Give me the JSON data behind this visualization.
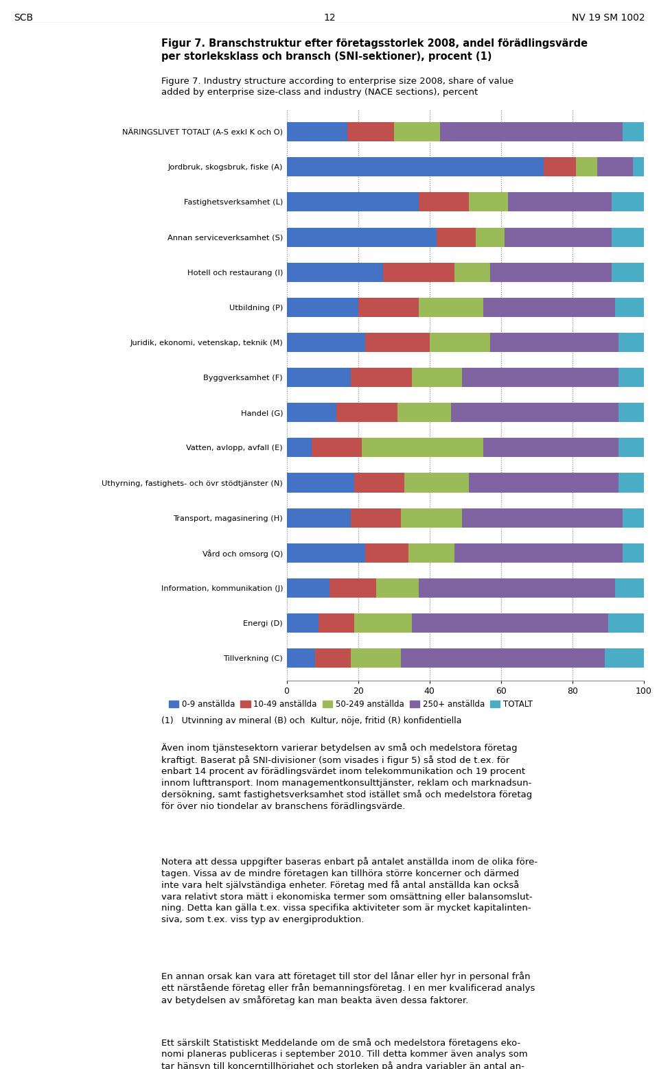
{
  "title_bold": "Figur 7. Branschstruktur efter företagsstorlek 2008, andel förädlingsvärde\nper storleksklass och bransch (SNI-sektioner), procent (1)",
  "title_normal": "Figure 7. Industry structure according to enterprise size 2008, share of value\nadded by enterprise size-class and industry (NACE sections), percent",
  "categories": [
    "NÄRINGSLIVET TOTALT (A-S exkl K och O)",
    "Jordbruk, skogsbruk, fiske (A)",
    "Fastighetsverksamhet (L)",
    "Annan serviceverksamhet (S)",
    "Hotell och restaurang (I)",
    "Utbildning (P)",
    "Juridik, ekonomi, vetenskap, teknik (M)",
    "Byggverksamhet (F)",
    "Handel (G)",
    "Vatten, avlopp, avfall (E)",
    "Uthyrning, fastighets- och övr stödtjänster (N)",
    "Transport, magasinering (H)",
    "Vård och omsorg (Q)",
    "Information, kommunikation (J)",
    "Energi (D)",
    "Tillverkning (C)"
  ],
  "data": {
    "0-9 anställda": [
      17,
      72,
      37,
      42,
      27,
      20,
      22,
      18,
      14,
      7,
      19,
      18,
      22,
      12,
      9,
      8
    ],
    "10-49 anställda": [
      13,
      9,
      14,
      11,
      20,
      17,
      18,
      17,
      17,
      14,
      14,
      14,
      12,
      13,
      10,
      10
    ],
    "50-249 anställda": [
      13,
      6,
      11,
      8,
      10,
      18,
      17,
      14,
      15,
      34,
      18,
      17,
      13,
      12,
      16,
      14
    ],
    "250+ anställda": [
      51,
      10,
      29,
      30,
      34,
      37,
      36,
      44,
      47,
      38,
      42,
      45,
      47,
      55,
      55,
      57
    ],
    "TOTALT": [
      6,
      3,
      9,
      9,
      9,
      8,
      7,
      7,
      7,
      7,
      7,
      6,
      6,
      8,
      10,
      11
    ]
  },
  "colors": {
    "0-9 anställda": "#4472c4",
    "10-49 anställda": "#c0504d",
    "50-249 anställda": "#9bbb59",
    "250+ anställda": "#8064a2",
    "TOTALT": "#4bacc6"
  },
  "legend_labels": [
    "0-9 anställda",
    "10-49 anställda",
    "50-249 anställda",
    "250+ anställda",
    "TOTALT"
  ],
  "footnote": "(1)   Utvinning av mineral (B) och  Kultur, nöje, fritid (R) konfidentiella",
  "header_left": "SCB",
  "header_center": "12",
  "header_right": "NV 19 SM 1002",
  "body_paragraphs": [
    "Även inom tjänstesektorn varierar betydelsen av små och medelstora företag\nkraftigt. Baserat på SNI-divisioner (som visades i figur 5) så stod de t.ex. för\nenbart 14 procent av förädlingsvärdet inom telekommunikation och 19 procent\ninnom lufttransport. Inom managementkonsulttjänster, reklam och marknadsun-\ndersökning, samt fastighetsverksamhet stod istället små och medelstora företag\nför över nio tiondelar av branschens förädlingsvärde.",
    "Notera att dessa uppgifter baseras enbart på antalet anställda inom de olika före-\ntagen. Vissa av de mindre företagen kan tillhöra större koncerner och därmed\ninte vara helt självständiga enheter. Företag med få antal anställda kan också\nvara relativt stora mätt i ekonomiska termer som omsättning eller balansomslut-\nning. Detta kan gälla t.ex. vissa specifika aktiviteter som är mycket kapitalinten-\nsiva, som t.ex. viss typ av energiproduktion.",
    "En annan orsak kan vara att företaget till stor del lånar eller hyr in personal från\nett närstående företag eller från bemanningsföretag. I en mer kvalificerad analys\nav betydelsen av småföretag kan man beakta även dessa faktorer.",
    "Ett särskilt Statistiskt Meddelande om de små och medelstora företagens eko-\nnomi planeras publiceras i september 2010. Till detta kommer även analys som\ntar hänsyn till koncerntillhörighet och storleken på andra variabler än antal an-\nställda att presenteras."
  ]
}
